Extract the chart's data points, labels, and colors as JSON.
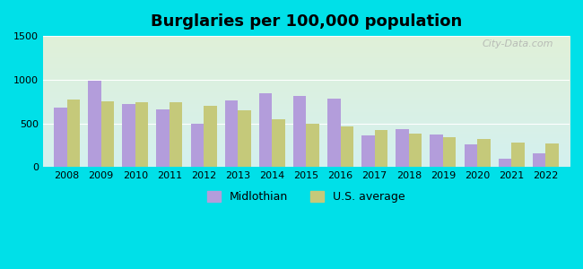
{
  "title": "Burglaries per 100,000 population",
  "years": [
    2008,
    2009,
    2010,
    2011,
    2012,
    2013,
    2014,
    2015,
    2016,
    2017,
    2018,
    2019,
    2020,
    2021,
    2022
  ],
  "midlothian": [
    680,
    990,
    720,
    660,
    500,
    760,
    850,
    810,
    780,
    360,
    430,
    370,
    265,
    95,
    155
  ],
  "us_average": [
    770,
    750,
    740,
    740,
    700,
    650,
    550,
    500,
    470,
    420,
    380,
    340,
    320,
    285,
    275
  ],
  "midlothian_color": "#b39ddb",
  "us_avg_color": "#c5c97a",
  "bg_top": "#d4f0ef",
  "bg_bottom": "#e0f0d8",
  "ylim": [
    0,
    1500
  ],
  "yticks": [
    0,
    500,
    1000,
    1500
  ],
  "bar_width": 0.38,
  "legend_labels": [
    "Midlothian",
    "U.S. average"
  ],
  "outer_bg": "#00e0e8",
  "watermark": "City-Data.com",
  "grid_color": "#ffffff",
  "title_fontsize": 13,
  "tick_fontsize": 8
}
